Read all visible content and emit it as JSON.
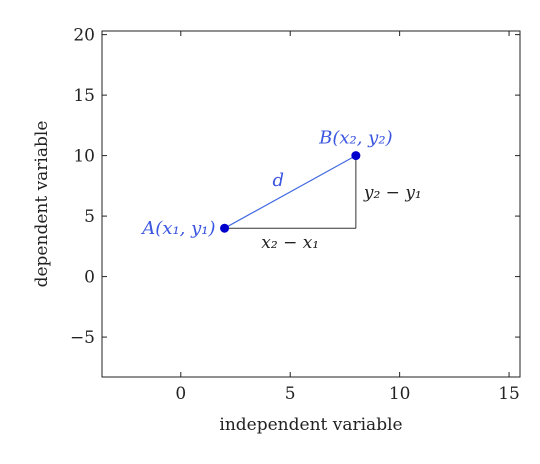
{
  "chart_data": {
    "type": "scatter",
    "xlabel": "independent variable",
    "ylabel": "dependent variable",
    "xlim": [
      -3.6,
      15.5
    ],
    "ylim": [
      -8.3,
      20.3
    ],
    "xticks": [
      0,
      5,
      10,
      15
    ],
    "yticks": [
      -5,
      0,
      5,
      10,
      15,
      20
    ],
    "xtick_labels": [
      "0",
      "5",
      "10",
      "15"
    ],
    "ytick_labels": [
      "−5",
      "0",
      "5",
      "10",
      "15",
      "20"
    ],
    "grid": false,
    "points": [
      {
        "x": 2,
        "y": 4,
        "label": "A(x₁, y₁)"
      },
      {
        "x": 8,
        "y": 10,
        "label": "B(x₂, y₂)"
      }
    ],
    "segments": [
      {
        "label": "d",
        "from": [
          2,
          4
        ],
        "to": [
          8,
          10
        ]
      },
      {
        "label": "x₂ − x₁",
        "from": [
          2,
          4
        ],
        "to": [
          8,
          4
        ]
      },
      {
        "label": "y₂ − y₁",
        "from": [
          8,
          4
        ],
        "to": [
          8,
          10
        ]
      }
    ],
    "colors": {
      "points": "#0000cc",
      "hypotenuse": "#4169e1",
      "labels": "#3a55e0",
      "legs": "#333333"
    }
  }
}
